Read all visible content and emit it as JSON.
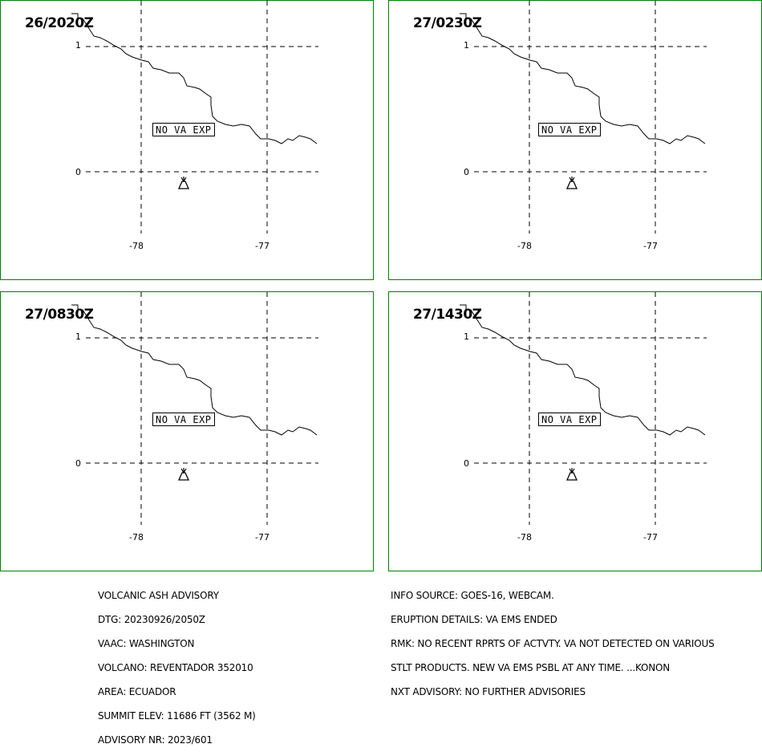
{
  "panels": [
    {
      "time": "26/2020Z",
      "label": "NO VA EXP"
    },
    {
      "time": "27/0230Z",
      "label": "NO VA EXP"
    },
    {
      "time": "27/0830Z",
      "label": "NO VA EXP"
    },
    {
      "time": "27/1430Z",
      "label": "NO VA EXP"
    }
  ],
  "axes": {
    "lat": [
      "1",
      "0"
    ],
    "lon": [
      "-78",
      "-77"
    ]
  },
  "advisory_left": [
    "VOLCANIC ASH ADVISORY",
    "DTG: 20230926/2050Z",
    "VAAC: WASHINGTON",
    "VOLCANO: REVENTADOR 352010",
    "AREA: ECUADOR",
    "SUMMIT ELEV: 11686 FT (3562 M)",
    "ADVISORY NR: 2023/601"
  ],
  "advisory_right": [
    "INFO SOURCE: GOES-16, WEBCAM.",
    "ERUPTION DETAILS: VA EMS ENDED",
    "RMK: NO RECENT RPRTS OF ACTVTY. VA NOT DETECTED ON VARIOUS",
    "STLT PRODUCTS. NEW VA EMS PSBL AT ANY TIME. ...KONON",
    "NXT ADVISORY: NO FURTHER ADVISORIES"
  ],
  "colors": {
    "frame": "#008000",
    "lines": "#000000"
  },
  "icons": {
    "volcano": "volcano-icon"
  }
}
